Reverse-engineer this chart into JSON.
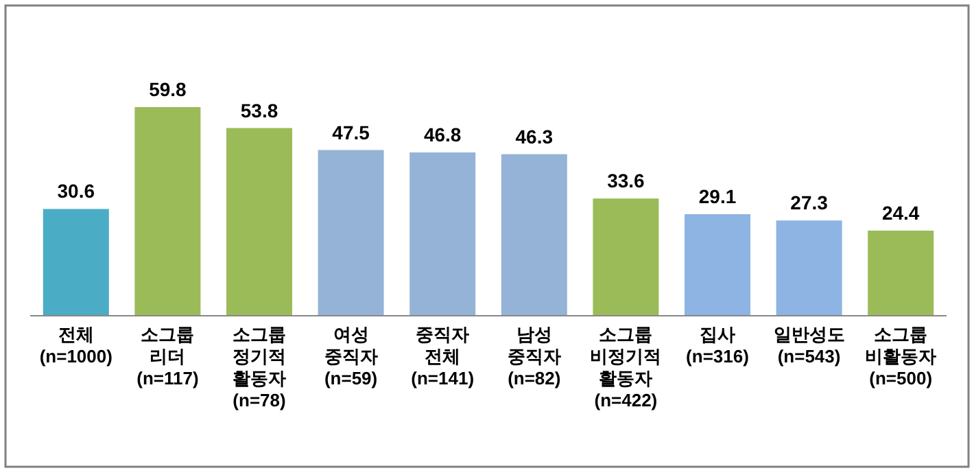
{
  "chart_data": {
    "type": "bar",
    "categories": [
      "전체\n(n=1000)",
      "소그룹\n리더\n(n=117)",
      "소그룹\n정기적\n활동자\n(n=78)",
      "여성\n중직자\n(n=59)",
      "중직자\n전체\n(n=141)",
      "남성\n중직자\n(n=82)",
      "소그룹\n비정기적\n활동자\n(n=422)",
      "집사\n(n=316)",
      "일반성도\n(n=543)",
      "소그룹\n비활동자\n(n=500)"
    ],
    "values": [
      30.6,
      59.8,
      53.8,
      47.5,
      46.8,
      46.3,
      33.6,
      29.1,
      27.3,
      24.4
    ],
    "colors": [
      "#4bacc6",
      "#9bbb59",
      "#9bbb59",
      "#95b3d7",
      "#95b3d7",
      "#95b3d7",
      "#9bbb59",
      "#8db4e2",
      "#8db4e2",
      "#9bbb59"
    ],
    "data_labels": true
  }
}
